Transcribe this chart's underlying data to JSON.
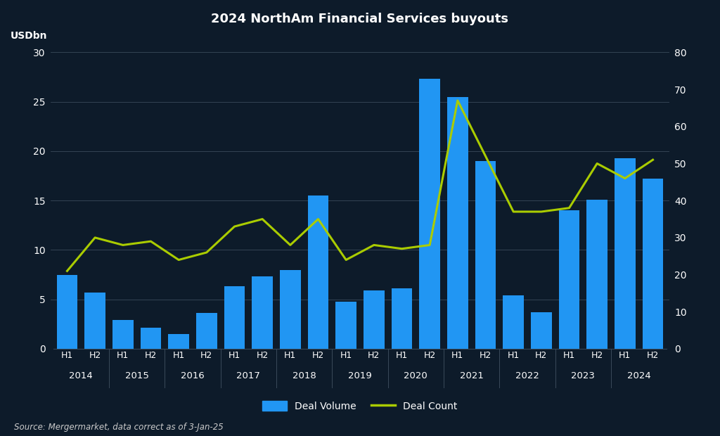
{
  "title": "2024 NorthAm Financial Services buyouts",
  "ylabel_left": "USDbn",
  "source": "Source: Mergermarket, data correct as of 3-Jan-25",
  "background_color": "#0d1b2a",
  "text_color": "#ffffff",
  "grid_color": "#3a4a5a",
  "bar_color": "#2196f3",
  "line_color": "#aacc00",
  "bar_values": [
    7.5,
    5.7,
    2.9,
    2.1,
    1.5,
    3.6,
    6.3,
    7.3,
    8.0,
    15.5,
    4.8,
    5.9,
    6.1,
    27.3,
    25.5,
    19.0,
    5.4,
    3.7,
    14.0,
    15.1,
    19.3,
    17.2
  ],
  "line_values": [
    21,
    30,
    28,
    29,
    24,
    26,
    33,
    35,
    28,
    35,
    24,
    28,
    27,
    28,
    67,
    52,
    37,
    37,
    38,
    50,
    46,
    51
  ],
  "ylim_left": [
    0,
    30
  ],
  "ylim_right": [
    0,
    80
  ],
  "yticks_left": [
    0,
    5,
    10,
    15,
    20,
    25,
    30
  ],
  "yticks_right": [
    0,
    10,
    20,
    30,
    40,
    50,
    60,
    70,
    80
  ],
  "h_labels": [
    "H1",
    "H2",
    "H1",
    "H2",
    "H1",
    "H2",
    "H1",
    "H2",
    "H1",
    "H2",
    "H1",
    "H2",
    "H1",
    "H2",
    "H1",
    "H2",
    "H1",
    "H2",
    "H1",
    "H2",
    "H1",
    "H2"
  ],
  "year_labels": [
    "2014",
    "2015",
    "2016",
    "2017",
    "2018",
    "2019",
    "2020",
    "2021",
    "2022",
    "2023",
    "2024"
  ],
  "legend_labels": [
    "Deal Volume",
    "Deal Count"
  ]
}
